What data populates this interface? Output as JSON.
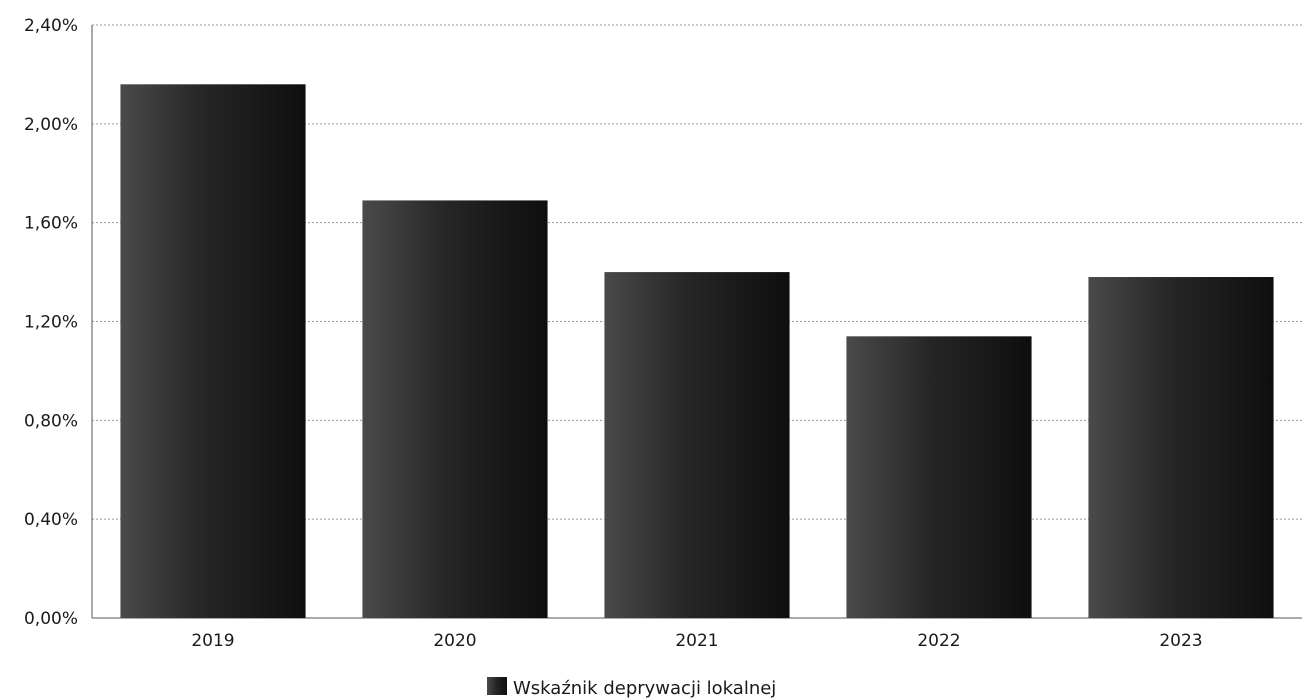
{
  "chart_data": {
    "type": "bar",
    "categories": [
      "2019",
      "2020",
      "2021",
      "2022",
      "2023"
    ],
    "series": [
      {
        "name": "Wskaźnik deprywacji lokalnej",
        "values": [
          2.16,
          1.69,
          1.4,
          1.14,
          1.38
        ]
      }
    ],
    "value_format": "percent",
    "ylim": [
      0,
      2.4
    ],
    "yticks": [
      "0,00%",
      "0,40%",
      "0,80%",
      "1,20%",
      "1,60%",
      "2,00%",
      "2,40%"
    ],
    "ytick_values": [
      0,
      0.4,
      0.8,
      1.2,
      1.6,
      2.0,
      2.4
    ],
    "grid": true,
    "legend": "bottom-center",
    "bar_color": "#222222"
  }
}
